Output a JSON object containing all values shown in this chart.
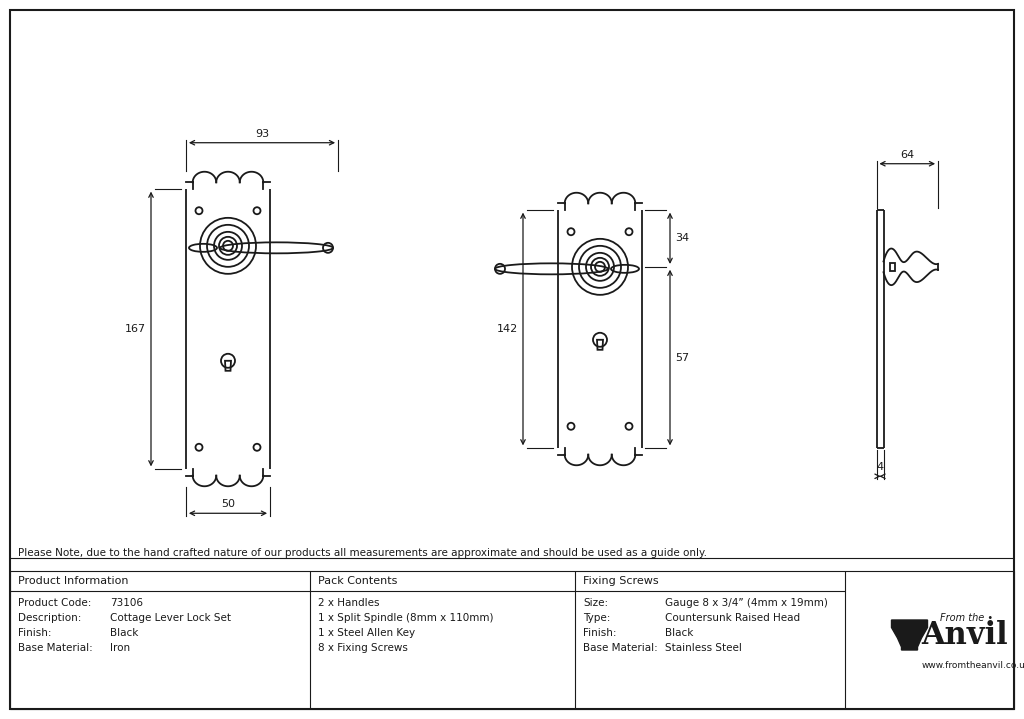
{
  "bg_color": "#ffffff",
  "line_color": "#1a1a1a",
  "note_text": "Please Note, due to the hand crafted nature of our products all measurements are approximate and should be used as a guide only.",
  "table_headers": [
    "Product Information",
    "Pack Contents",
    "Fixing Screws"
  ],
  "product_info": [
    [
      "Product Code:",
      "73106"
    ],
    [
      "Description:",
      "Cottage Lever Lock Set"
    ],
    [
      "Finish:",
      "Black"
    ],
    [
      "Base Material:",
      "Iron"
    ]
  ],
  "pack_contents": [
    "2 x Handles",
    "1 x Split Spindle (8mm x 110mm)",
    "1 x Steel Allen Key",
    "8 x Fixing Screws"
  ],
  "fixing_screws": [
    [
      "Size:",
      "Gauge 8 x 3/4” (4mm x 19mm)"
    ],
    [
      "Type:",
      "Countersunk Raised Head"
    ],
    [
      "Finish:",
      "Black"
    ],
    [
      "Base Material:",
      "Stainless Steel"
    ]
  ],
  "dim_93": "93",
  "dim_50": "50",
  "dim_167": "167",
  "dim_142": "142",
  "dim_34": "34",
  "dim_57": "57",
  "dim_64": "64",
  "dim_4": "4"
}
